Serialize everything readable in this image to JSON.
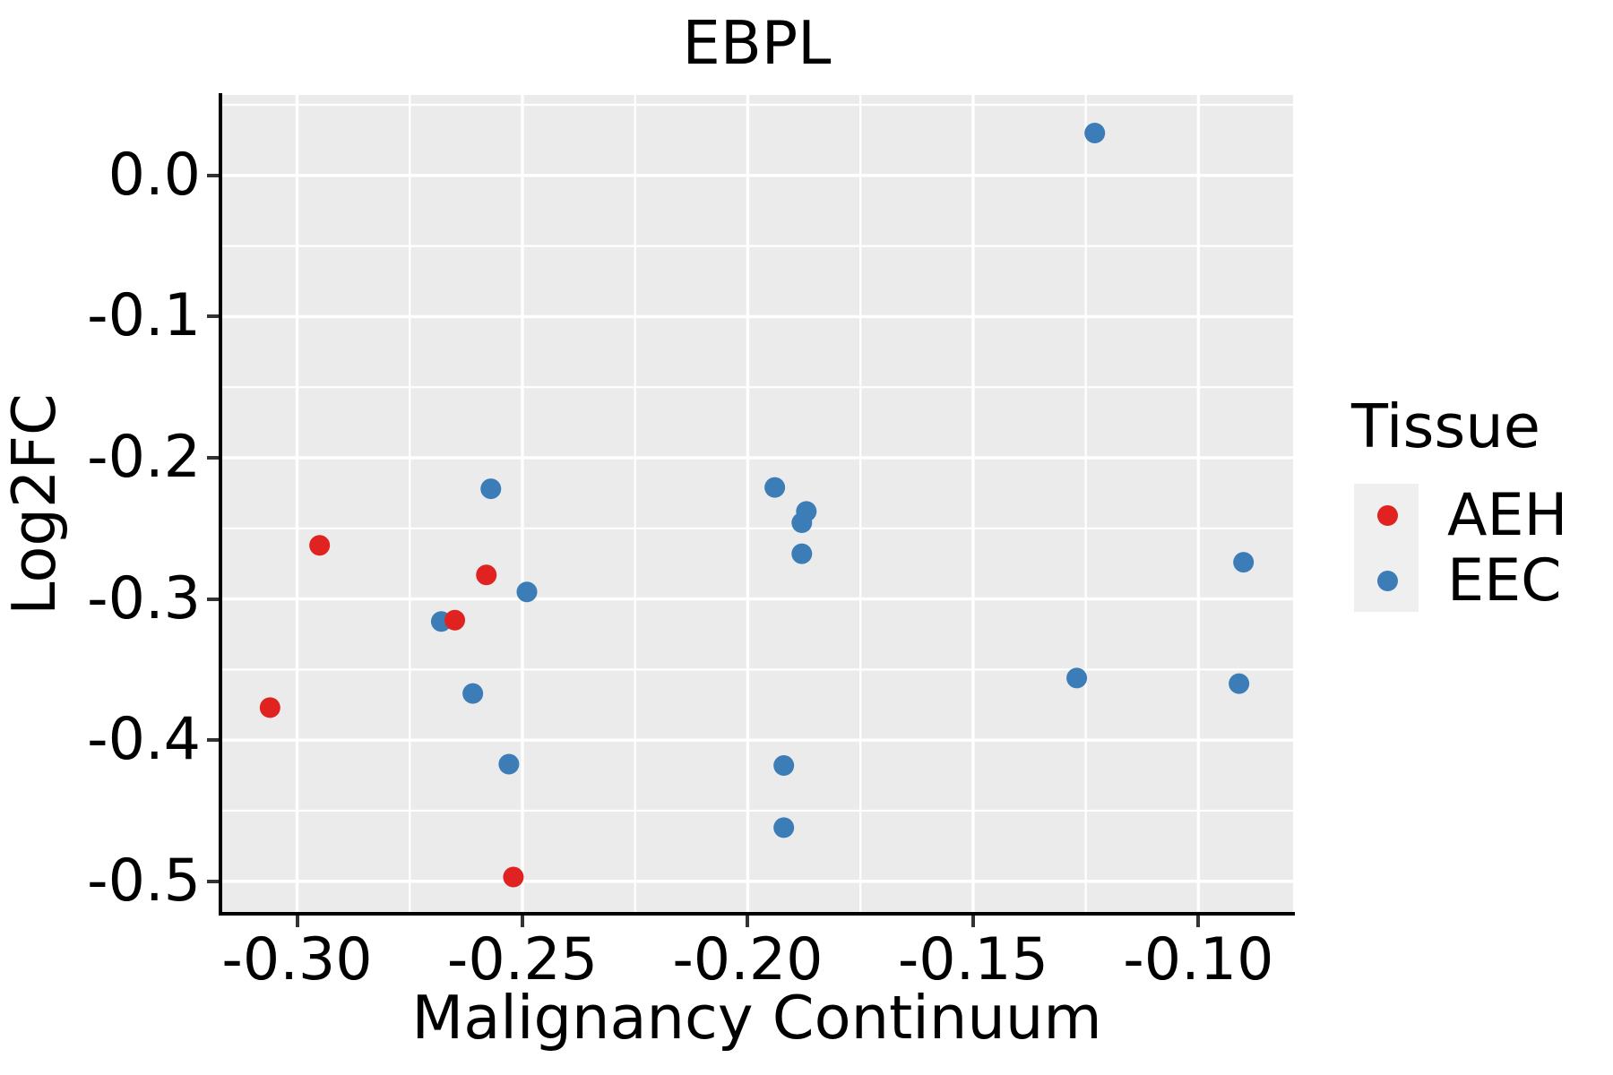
{
  "chart_data": {
    "type": "scatter",
    "title": "EBPL",
    "xlabel": "Malignancy Continuum",
    "ylabel": "Log2FC",
    "xlim": [
      -0.317,
      -0.079
    ],
    "ylim": [
      -0.523,
      0.057
    ],
    "grid": true,
    "plot_bg_color": "#ebebeb",
    "gridline_color": "#ffffff",
    "x_tick_values": [
      -0.3,
      -0.25,
      -0.2,
      -0.15,
      -0.1
    ],
    "x_tick_labels": [
      "-0.30",
      "-0.25",
      "-0.20",
      "-0.15",
      "-0.10"
    ],
    "x_minor_tick_values": [
      -0.275,
      -0.225,
      -0.175,
      -0.125
    ],
    "y_tick_values": [
      0.0,
      -0.1,
      -0.2,
      -0.3,
      -0.4,
      -0.5
    ],
    "y_tick_labels": [
      "0.0",
      "-0.1",
      "-0.2",
      "-0.3",
      "-0.4",
      "-0.5"
    ],
    "y_minor_tick_values": [
      0.05,
      -0.05,
      -0.15,
      -0.25,
      -0.35,
      -0.45
    ],
    "legend_position": "right",
    "series": [
      {
        "name": "AEH",
        "color": "#e02220",
        "points": [
          [
            -0.295,
            -0.262
          ],
          [
            -0.258,
            -0.283
          ],
          [
            -0.265,
            -0.315
          ],
          [
            -0.306,
            -0.377
          ],
          [
            -0.252,
            -0.497
          ]
        ]
      },
      {
        "name": "EEC",
        "color": "#3c7cb7",
        "points": [
          [
            -0.257,
            -0.222
          ],
          [
            -0.249,
            -0.295
          ],
          [
            -0.268,
            -0.316
          ],
          [
            -0.261,
            -0.367
          ],
          [
            -0.253,
            -0.417
          ],
          [
            -0.194,
            -0.221
          ],
          [
            -0.187,
            -0.238
          ],
          [
            -0.188,
            -0.246
          ],
          [
            -0.188,
            -0.268
          ],
          [
            -0.192,
            -0.418
          ],
          [
            -0.192,
            -0.462
          ],
          [
            -0.123,
            0.03
          ],
          [
            -0.127,
            -0.356
          ],
          [
            -0.09,
            -0.274
          ],
          [
            -0.091,
            -0.36
          ]
        ]
      }
    ],
    "legend": {
      "title": "Tissue",
      "entries": [
        {
          "label": "AEH",
          "color": "#e02220"
        },
        {
          "label": "EEC",
          "color": "#3c7cb7"
        }
      ]
    }
  }
}
